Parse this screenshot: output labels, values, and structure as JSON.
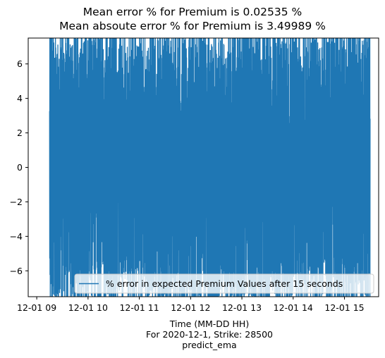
{
  "chart_data": {
    "type": "line",
    "title_lines": [
      "Mean error % for Premium is 0.02535 %",
      "Mean absoute error % for Premium is 3.49989 %"
    ],
    "xlabel_lines": [
      "Time (MM-DD HH)",
      "For 2020-12-1, Strike: 28500",
      "predict_ema"
    ],
    "ylabel": "",
    "x_range": [
      "2020-12-01 08:50",
      "2020-12-01 15:40"
    ],
    "ylim": [
      -7.5,
      7.5
    ],
    "x_ticks": [
      "12-01 09",
      "12-01 10",
      "12-01 11",
      "12-01 12",
      "12-01 13",
      "12-01 14",
      "12-01 15"
    ],
    "y_ticks": [
      -6,
      -4,
      -2,
      0,
      2,
      4,
      6
    ],
    "series": [
      {
        "name": "% error in expected Premium Values after 15 seconds",
        "color": "#1f77b4",
        "x_start": "2020-12-01 09:15",
        "x_end": "2020-12-01 15:30",
        "sampling_interval": "15 seconds",
        "approx_value_range": [
          -7.5,
          7.5
        ]
      }
    ],
    "legend": {
      "placement": "lower right"
    },
    "grid": false
  }
}
